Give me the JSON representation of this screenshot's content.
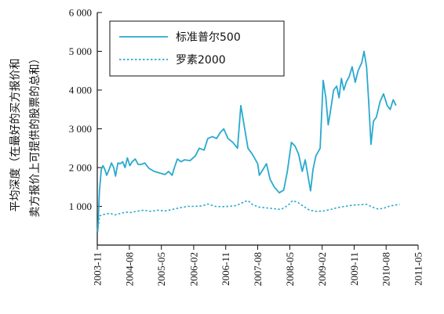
{
  "chart_data": {
    "type": "line",
    "title": "",
    "xlabel": "",
    "ylabel_lines": [
      "平均深度（在最好的买方报价和",
      "卖方报价上可提供的股票的总和）"
    ],
    "ylim": [
      0,
      6000
    ],
    "yticks": [
      1000,
      2000,
      3000,
      4000,
      5000,
      6000
    ],
    "ytick_labels": [
      "1 000",
      "2 000",
      "3 000",
      "4 000",
      "5 000",
      "6 000"
    ],
    "xlim": [
      "2003-11",
      "2011-05"
    ],
    "xticks": [
      "2003-11",
      "2004-08",
      "2005-05",
      "2006-02",
      "2006-11",
      "2007-08",
      "2008-05",
      "2009-02",
      "2009-11",
      "2010-08",
      "2011-05"
    ],
    "legend_position": "top-left",
    "grid": false,
    "series": [
      {
        "name": "标准普尔500",
        "style": "solid",
        "color": "#2aa9cf",
        "points": [
          [
            "2003-11-05",
            350
          ],
          [
            "2003-11-20",
            1400
          ],
          [
            "2003-12-05",
            1950
          ],
          [
            "2003-12-20",
            2050
          ],
          [
            "2004-01-05",
            1950
          ],
          [
            "2004-01-20",
            1800
          ],
          [
            "2004-02-10",
            1950
          ],
          [
            "2004-03-01",
            2120
          ],
          [
            "2004-03-20",
            2000
          ],
          [
            "2004-04-05",
            1780
          ],
          [
            "2004-04-25",
            2120
          ],
          [
            "2004-05-15",
            2100
          ],
          [
            "2004-06-05",
            2150
          ],
          [
            "2004-06-25",
            2000
          ],
          [
            "2004-07-15",
            2250
          ],
          [
            "2004-08-05",
            2050
          ],
          [
            "2004-08-25",
            2150
          ],
          [
            "2004-09-20",
            2220
          ],
          [
            "2004-10-15",
            2080
          ],
          [
            "2004-11-10",
            2080
          ],
          [
            "2004-12-10",
            2120
          ],
          [
            "2005-01-15",
            1980
          ],
          [
            "2005-03-01",
            1900
          ],
          [
            "2005-04-15",
            1860
          ],
          [
            "2005-06-01",
            1820
          ],
          [
            "2005-07-01",
            1900
          ],
          [
            "2005-08-01",
            1800
          ],
          [
            "2005-08-20",
            2000
          ],
          [
            "2005-09-15",
            2220
          ],
          [
            "2005-10-15",
            2150
          ],
          [
            "2005-11-15",
            2200
          ],
          [
            "2006-01-01",
            2180
          ],
          [
            "2006-02-15",
            2300
          ],
          [
            "2006-03-20",
            2500
          ],
          [
            "2006-05-01",
            2450
          ],
          [
            "2006-06-01",
            2750
          ],
          [
            "2006-07-10",
            2800
          ],
          [
            "2006-08-15",
            2750
          ],
          [
            "2006-09-15",
            2900
          ],
          [
            "2006-10-15",
            3000
          ],
          [
            "2006-11-20",
            2750
          ],
          [
            "2007-01-01",
            2650
          ],
          [
            "2007-02-10",
            2500
          ],
          [
            "2007-03-10",
            3600
          ],
          [
            "2007-04-01",
            3200
          ],
          [
            "2007-05-10",
            2500
          ],
          [
            "2007-06-15",
            2350
          ],
          [
            "2007-08-01",
            2100
          ],
          [
            "2007-08-15",
            1800
          ],
          [
            "2007-09-15",
            1950
          ],
          [
            "2007-10-15",
            2100
          ],
          [
            "2007-11-15",
            1700
          ],
          [
            "2007-12-20",
            1500
          ],
          [
            "2008-02-01",
            1350
          ],
          [
            "2008-03-10",
            1420
          ],
          [
            "2008-04-10",
            1900
          ],
          [
            "2008-05-15",
            2650
          ],
          [
            "2008-06-15",
            2550
          ],
          [
            "2008-07-15",
            2350
          ],
          [
            "2008-08-15",
            1900
          ],
          [
            "2008-09-10",
            2200
          ],
          [
            "2008-10-05",
            1750
          ],
          [
            "2008-10-25",
            1400
          ],
          [
            "2008-11-15",
            1950
          ],
          [
            "2008-12-10",
            2300
          ],
          [
            "2009-01-15",
            2500
          ],
          [
            "2009-02-10",
            4250
          ],
          [
            "2009-03-05",
            3800
          ],
          [
            "2009-03-25",
            3100
          ],
          [
            "2009-04-15",
            3500
          ],
          [
            "2009-05-10",
            4000
          ],
          [
            "2009-06-05",
            4100
          ],
          [
            "2009-06-25",
            3800
          ],
          [
            "2009-07-15",
            4300
          ],
          [
            "2009-08-05",
            4000
          ],
          [
            "2009-08-25",
            4200
          ],
          [
            "2009-09-20",
            4350
          ],
          [
            "2009-10-15",
            4600
          ],
          [
            "2009-11-10",
            4200
          ],
          [
            "2009-12-05",
            4500
          ],
          [
            "2010-01-05",
            4700
          ],
          [
            "2010-01-25",
            5000
          ],
          [
            "2010-02-15",
            4600
          ],
          [
            "2010-03-05",
            3700
          ],
          [
            "2010-03-25",
            2600
          ],
          [
            "2010-04-15",
            3200
          ],
          [
            "2010-05-10",
            3300
          ],
          [
            "2010-06-10",
            3700
          ],
          [
            "2010-07-10",
            3900
          ],
          [
            "2010-08-10",
            3600
          ],
          [
            "2010-09-05",
            3500
          ],
          [
            "2010-10-01",
            3750
          ],
          [
            "2010-10-25",
            3600
          ]
        ]
      },
      {
        "name": "罗素2000",
        "style": "dotted",
        "color": "#2aa9cf",
        "points": [
          [
            "2003-11-05",
            350
          ],
          [
            "2003-11-20",
            750
          ],
          [
            "2003-12-10",
            780
          ],
          [
            "2004-01-10",
            800
          ],
          [
            "2004-02-15",
            820
          ],
          [
            "2004-04-01",
            780
          ],
          [
            "2004-05-20",
            820
          ],
          [
            "2004-07-01",
            850
          ],
          [
            "2004-08-15",
            840
          ],
          [
            "2004-10-01",
            870
          ],
          [
            "2004-12-01",
            900
          ],
          [
            "2005-02-01",
            870
          ],
          [
            "2005-04-01",
            900
          ],
          [
            "2005-06-01",
            880
          ],
          [
            "2005-08-01",
            920
          ],
          [
            "2005-10-01",
            960
          ],
          [
            "2005-12-15",
            1000
          ],
          [
            "2006-02-15",
            1000
          ],
          [
            "2006-04-15",
            1010
          ],
          [
            "2006-06-01",
            1060
          ],
          [
            "2006-08-01",
            1000
          ],
          [
            "2006-10-01",
            990
          ],
          [
            "2006-12-01",
            1000
          ],
          [
            "2007-02-01",
            1020
          ],
          [
            "2007-04-10",
            1120
          ],
          [
            "2007-05-10",
            1150
          ],
          [
            "2007-06-20",
            1040
          ],
          [
            "2007-08-15",
            980
          ],
          [
            "2007-10-15",
            960
          ],
          [
            "2007-12-15",
            940
          ],
          [
            "2008-02-15",
            920
          ],
          [
            "2008-04-15",
            1020
          ],
          [
            "2008-05-25",
            1150
          ],
          [
            "2008-07-10",
            1100
          ],
          [
            "2008-08-25",
            1000
          ],
          [
            "2008-10-15",
            900
          ],
          [
            "2008-12-15",
            870
          ],
          [
            "2009-02-15",
            880
          ],
          [
            "2009-04-15",
            920
          ],
          [
            "2009-06-15",
            970
          ],
          [
            "2009-08-15",
            1000
          ],
          [
            "2009-10-15",
            1030
          ],
          [
            "2009-12-15",
            1040
          ],
          [
            "2010-02-15",
            1050
          ],
          [
            "2010-04-15",
            970
          ],
          [
            "2010-05-25",
            930
          ],
          [
            "2010-07-10",
            950
          ],
          [
            "2010-08-25",
            1000
          ],
          [
            "2010-10-10",
            1030
          ],
          [
            "2010-11-25",
            1050
          ]
        ]
      }
    ]
  }
}
